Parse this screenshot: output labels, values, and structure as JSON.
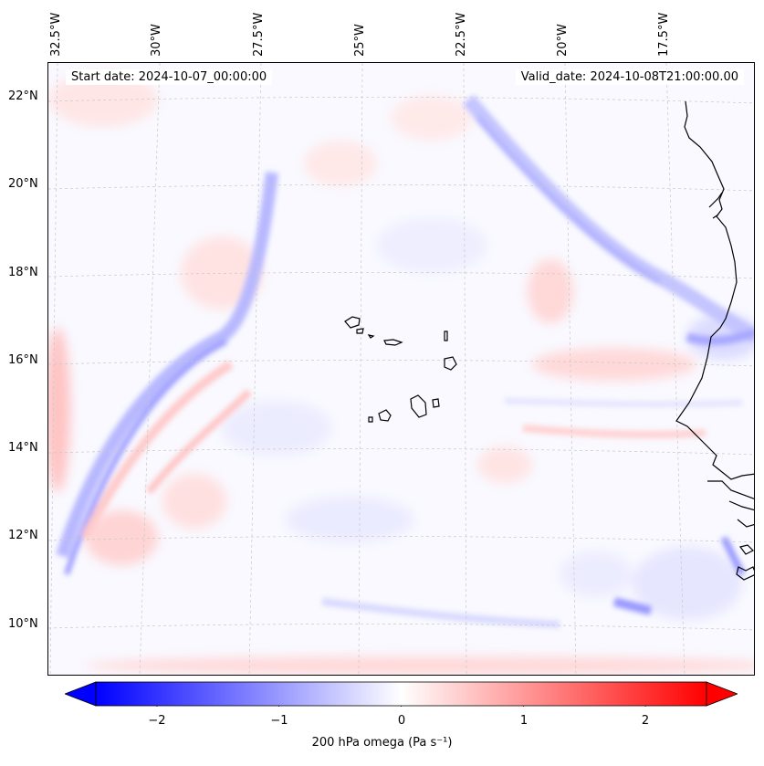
{
  "map": {
    "region": "Eastern tropical Atlantic around Cabo Verde and West African coast",
    "start_date_label": "Start date: 2024-10-07_00:00:00",
    "valid_date_label": "Valid_date: 2024-10-08T21:00:00.00",
    "lon_labels": [
      "32.5°W",
      "30°W",
      "27.5°W",
      "25°W",
      "22.5°W",
      "20°W",
      "17.5°W"
    ],
    "lat_labels": [
      "22°N",
      "20°N",
      "18°N",
      "16°N",
      "14°N",
      "12°N",
      "10°N"
    ],
    "field": "200 hPa omega",
    "colors": {
      "negative": "#0000ff",
      "zero": "#ffffff",
      "positive": "#ff0000",
      "coast": "#000000"
    }
  },
  "colorbar": {
    "label": "200 hPa omega (Pa s⁻¹)",
    "ticks": [
      "−2",
      "−1",
      "0",
      "1",
      "2"
    ],
    "tick_values": [
      -2,
      -1,
      0,
      1,
      2
    ],
    "vmin": -2.5,
    "vmax": 2.5,
    "extend": "both"
  }
}
